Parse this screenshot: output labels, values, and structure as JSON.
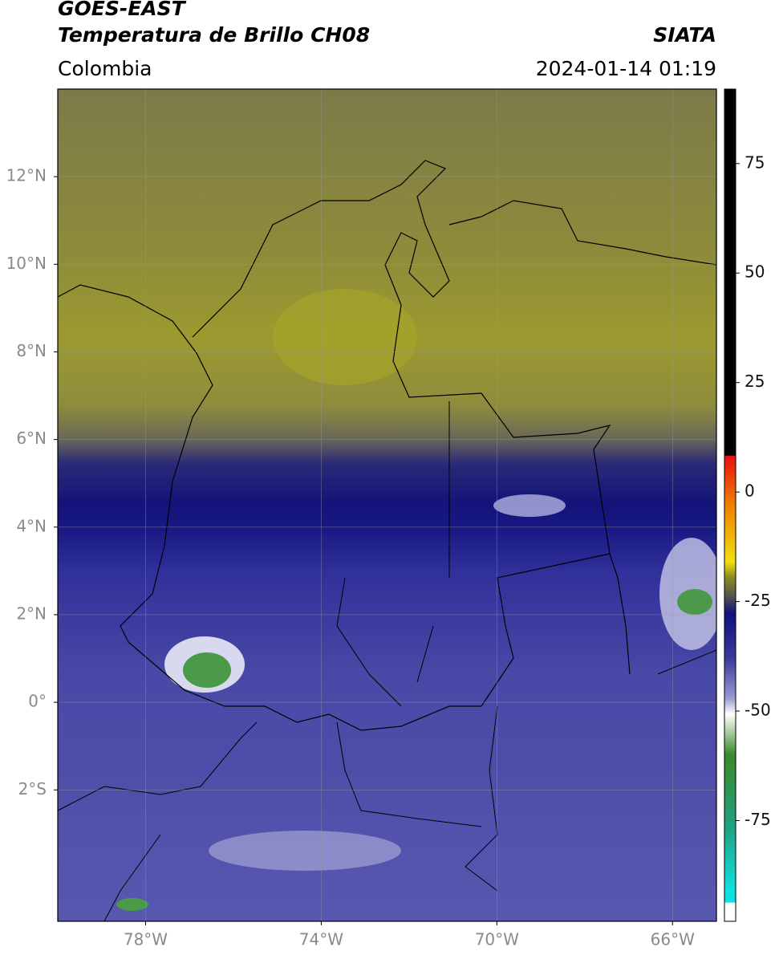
{
  "header": {
    "title": "GOES-EAST",
    "subtitle": "Temperatura de Brillo CH08",
    "region": "Colombia",
    "source": "SIATA",
    "timestamp": "2024-01-14 01:19"
  },
  "map": {
    "xlim": [
      -80,
      -65
    ],
    "ylim": [
      -5,
      14
    ],
    "xticks": [
      {
        "value": -78,
        "label": "78°W"
      },
      {
        "value": -74,
        "label": "74°W"
      },
      {
        "value": -70,
        "label": "70°W"
      },
      {
        "value": -66,
        "label": "66°W"
      }
    ],
    "yticks": [
      {
        "value": 12,
        "label": "12°N"
      },
      {
        "value": 10,
        "label": "10°N"
      },
      {
        "value": 8,
        "label": "8°N"
      },
      {
        "value": 6,
        "label": "6°N"
      },
      {
        "value": 4,
        "label": "4°N"
      },
      {
        "value": 2,
        "label": "2°N"
      },
      {
        "value": 0,
        "label": "0°"
      },
      {
        "value": -2,
        "label": "2°S"
      }
    ],
    "grid": true
  },
  "colorbar": {
    "lim": [
      -98,
      92
    ],
    "ticks": [
      75,
      50,
      25,
      0,
      -25,
      -50,
      -75
    ]
  }
}
